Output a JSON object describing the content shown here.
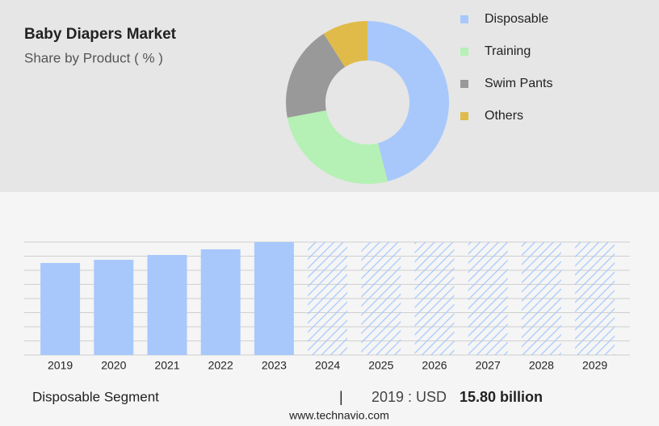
{
  "header": {
    "title": "Baby Diapers Market",
    "subtitle": "Share by Product ( % )"
  },
  "chart_data": [
    {
      "type": "pie",
      "categories": [
        "Disposable",
        "Training",
        "Swim Pants",
        "Others"
      ],
      "values": [
        46,
        26,
        19,
        9
      ],
      "colors": [
        "#a8c8fb",
        "#b5f0b5",
        "#999999",
        "#e0bb4a"
      ]
    },
    {
      "type": "bar",
      "categories": [
        "2019",
        "2020",
        "2021",
        "2022",
        "2023",
        "2024",
        "2025",
        "2026",
        "2027",
        "2028",
        "2029"
      ],
      "values": [
        15.8,
        16.35,
        17.18,
        18.15,
        19.4,
        null,
        null,
        null,
        null,
        null,
        null
      ],
      "color": "#a8c8fb",
      "ylim": [
        0,
        19.4
      ]
    }
  ],
  "footer": {
    "segment": "Disposable Segment",
    "separator": "|",
    "year_label": "2019 : USD",
    "value": "15.80 billion",
    "source": "www.technavio.com"
  }
}
